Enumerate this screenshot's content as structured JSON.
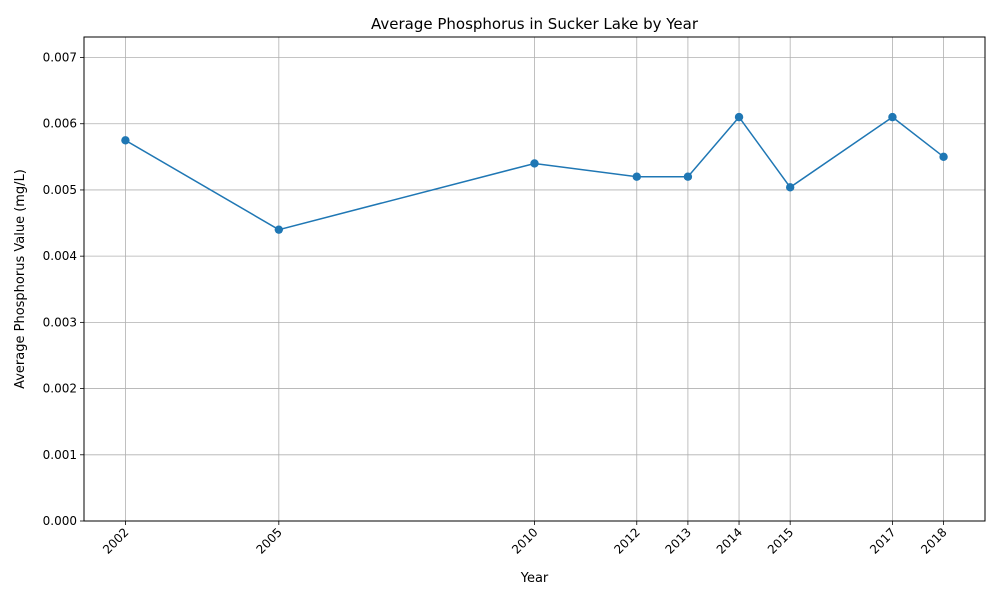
{
  "chart_data": {
    "type": "line",
    "title": "Average Phosphorus in Sucker Lake by Year",
    "xlabel": "Year",
    "ylabel": "Average Phosphorus Value (mg/L)",
    "x": [
      2002,
      2005,
      2010,
      2012,
      2013,
      2014,
      2015,
      2017,
      2018
    ],
    "series": [
      {
        "values": [
          0.00575,
          0.0044,
          0.0054,
          0.0052,
          0.0052,
          0.0061,
          0.00504,
          0.0061,
          0.0055
        ],
        "color": "#1f77b4",
        "marker": "circle"
      }
    ],
    "xticks": [
      "2002",
      "2005",
      "2010",
      "2012",
      "2013",
      "2014",
      "2015",
      "2017",
      "2018"
    ],
    "yticks": [
      "0.000",
      "0.001",
      "0.002",
      "0.003",
      "0.004",
      "0.005",
      "0.006",
      "0.007"
    ],
    "xlim": [
      2001.19,
      2018.81
    ],
    "ylim": [
      0,
      0.00731
    ],
    "grid": true,
    "legend": "none"
  }
}
